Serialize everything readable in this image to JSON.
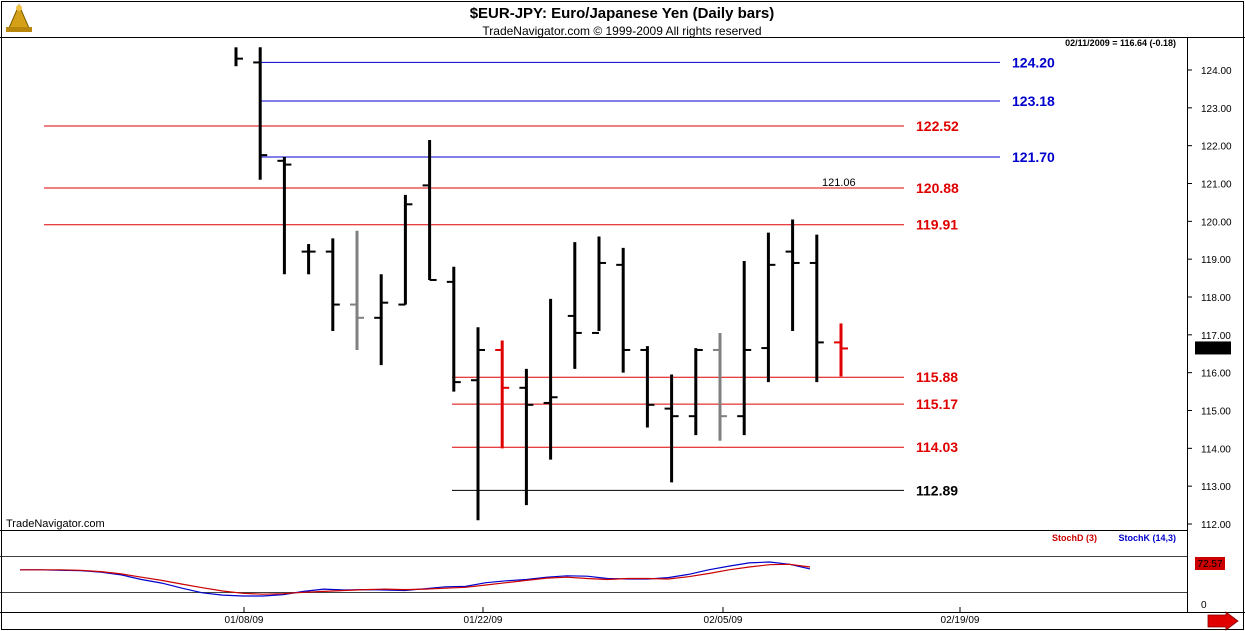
{
  "header": {
    "title": "$EUR-JPY:  Euro/Japanese Yen  (Daily bars)",
    "subtitle": "TradeNavigator.com © 1999-2009 All rights reserved",
    "watermark": "TradeNavigator.com"
  },
  "info_line": "02/11/2009 = 116.64 (-0.18)",
  "current_price_label": "116.64",
  "stoch": {
    "last_value_label": "72.57",
    "zero_label": "0",
    "legend_d": "StochD (3)",
    "legend_k": "StochK (14,3)",
    "color_d": "#cc0000",
    "color_k": "#0000cc"
  },
  "colors": {
    "support_resistance": "#e00000",
    "fib_blue": "#0000cc",
    "bar_black": "#000000",
    "bar_gray": "#808080",
    "bar_red": "#e00000",
    "price_tag_bg": "#000000"
  },
  "chart_data": {
    "type": "ohlc",
    "title": "$EUR-JPY:  Euro/Japanese Yen  (Daily bars)",
    "ylim": [
      111.8,
      124.6
    ],
    "y_ticks": [
      "112.00",
      "113.00",
      "114.00",
      "115.00",
      "116.00",
      "117.00",
      "118.00",
      "119.00",
      "120.00",
      "121.00",
      "122.00",
      "123.00",
      "124.00"
    ],
    "x_ticks": [
      "01/08/09",
      "01/22/09",
      "02/05/09",
      "02/19/09"
    ],
    "bars": [
      {
        "high": 124.6,
        "low": 124.1,
        "open": null,
        "close": 124.3,
        "color": "black"
      },
      {
        "high": 124.6,
        "low": 121.1,
        "open": 124.2,
        "close": 121.75,
        "color": "black"
      },
      {
        "high": 121.7,
        "low": 118.6,
        "open": 121.6,
        "close": 121.5,
        "color": "black"
      },
      {
        "high": 119.4,
        "low": 118.6,
        "open": 119.2,
        "close": 119.2,
        "color": "black"
      },
      {
        "high": 119.55,
        "low": 117.1,
        "open": 119.2,
        "close": 117.8,
        "color": "black"
      },
      {
        "high": 119.75,
        "low": 116.6,
        "open": 117.8,
        "close": 117.45,
        "color": "gray"
      },
      {
        "high": 118.6,
        "low": 116.2,
        "open": 117.45,
        "close": 117.85,
        "color": "black"
      },
      {
        "high": 120.7,
        "low": 117.8,
        "open": 117.8,
        "close": 120.45,
        "color": "black"
      },
      {
        "high": 122.15,
        "low": 118.45,
        "open": 120.95,
        "close": 118.45,
        "color": "black"
      },
      {
        "high": 118.8,
        "low": 115.5,
        "open": 118.4,
        "close": 115.75,
        "color": "black"
      },
      {
        "high": 117.2,
        "low": 112.1,
        "open": 115.8,
        "close": 116.6,
        "color": "black"
      },
      {
        "high": 116.85,
        "low": 114.0,
        "open": 116.6,
        "close": 115.6,
        "color": "red"
      },
      {
        "high": 116.1,
        "low": 112.5,
        "open": 115.6,
        "close": 115.15,
        "color": "black"
      },
      {
        "high": 117.95,
        "low": 113.7,
        "open": 115.2,
        "close": 115.35,
        "color": "black"
      },
      {
        "high": 119.45,
        "low": 116.1,
        "open": 117.5,
        "close": 117.05,
        "color": "black"
      },
      {
        "high": 119.6,
        "low": 117.1,
        "open": 117.05,
        "close": 118.9,
        "color": "black"
      },
      {
        "high": 119.3,
        "low": 116.0,
        "open": 118.85,
        "close": 116.6,
        "color": "black"
      },
      {
        "high": 116.7,
        "low": 114.55,
        "open": 116.6,
        "close": 115.15,
        "color": "black"
      },
      {
        "high": 115.95,
        "low": 113.1,
        "open": 115.05,
        "close": 114.85,
        "color": "black"
      },
      {
        "high": 116.65,
        "low": 114.35,
        "open": 114.85,
        "close": 116.6,
        "color": "black"
      },
      {
        "high": 117.05,
        "low": 114.2,
        "open": 116.6,
        "close": 114.85,
        "color": "gray"
      },
      {
        "high": 118.95,
        "low": 114.35,
        "open": 114.85,
        "close": 116.6,
        "color": "black"
      },
      {
        "high": 119.7,
        "low": 115.75,
        "open": 116.65,
        "close": 118.85,
        "color": "black"
      },
      {
        "high": 120.05,
        "low": 117.1,
        "open": 119.2,
        "close": 118.9,
        "color": "black"
      },
      {
        "high": 119.65,
        "low": 115.75,
        "open": 118.9,
        "close": 116.8,
        "color": "black"
      },
      {
        "high": 117.3,
        "low": 115.9,
        "open": 116.8,
        "close": 116.64,
        "color": "red"
      }
    ],
    "levels": [
      {
        "value": 124.2,
        "label": "124.20",
        "color": "blue"
      },
      {
        "value": 123.18,
        "label": "123.18",
        "color": "blue"
      },
      {
        "value": 122.52,
        "label": "122.52",
        "color": "red"
      },
      {
        "value": 121.7,
        "label": "121.70",
        "color": "blue"
      },
      {
        "value": 120.88,
        "label": "120.88",
        "color": "red"
      },
      {
        "value": 119.91,
        "label": "119.91",
        "color": "red"
      },
      {
        "value": 115.88,
        "label": "115.88",
        "color": "red"
      },
      {
        "value": 115.17,
        "label": "115.17",
        "color": "red"
      },
      {
        "value": 114.03,
        "label": "114.03",
        "color": "red"
      },
      {
        "value": 112.89,
        "label": "112.89",
        "color": "black"
      }
    ],
    "annotations": [
      {
        "value": 121.06,
        "label": "121.06"
      }
    ],
    "stoch_ylim": [
      0,
      100
    ],
    "stoch_k": [
      70,
      70,
      69,
      68,
      65,
      59,
      49,
      41,
      30,
      20,
      15,
      13,
      13,
      16,
      23,
      28,
      26,
      27,
      26,
      25,
      29,
      33,
      34,
      42,
      46,
      49,
      54,
      57,
      56,
      51,
      50,
      50,
      53,
      60,
      70,
      78,
      85,
      87,
      82,
      72
    ],
    "stoch_d": [
      70,
      70,
      70,
      69,
      66,
      61,
      54,
      47,
      39,
      31,
      24,
      19,
      17,
      18,
      21,
      23,
      25,
      27,
      28,
      27,
      28,
      30,
      32,
      37,
      42,
      47,
      52,
      54,
      51,
      49,
      51,
      51,
      50,
      55,
      62,
      70,
      76,
      81,
      82,
      76
    ]
  }
}
